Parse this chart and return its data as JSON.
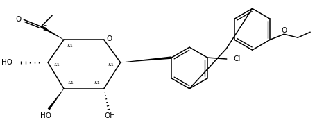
{
  "background_color": "#ffffff",
  "line_color": "#000000",
  "line_width": 1.1,
  "text_color": "#000000",
  "font_size": 6.5,
  "figsize": [
    4.81,
    1.86
  ],
  "dpi": 100,
  "ring_o_label": "O",
  "s_label": "S",
  "o_label": "O",
  "ho_label": "HO",
  "oh_label": "OH",
  "cl_label": "Cl",
  "o_eth_label": "O",
  "stereo_label": "&1",
  "stereo_fontsize": 4.5
}
